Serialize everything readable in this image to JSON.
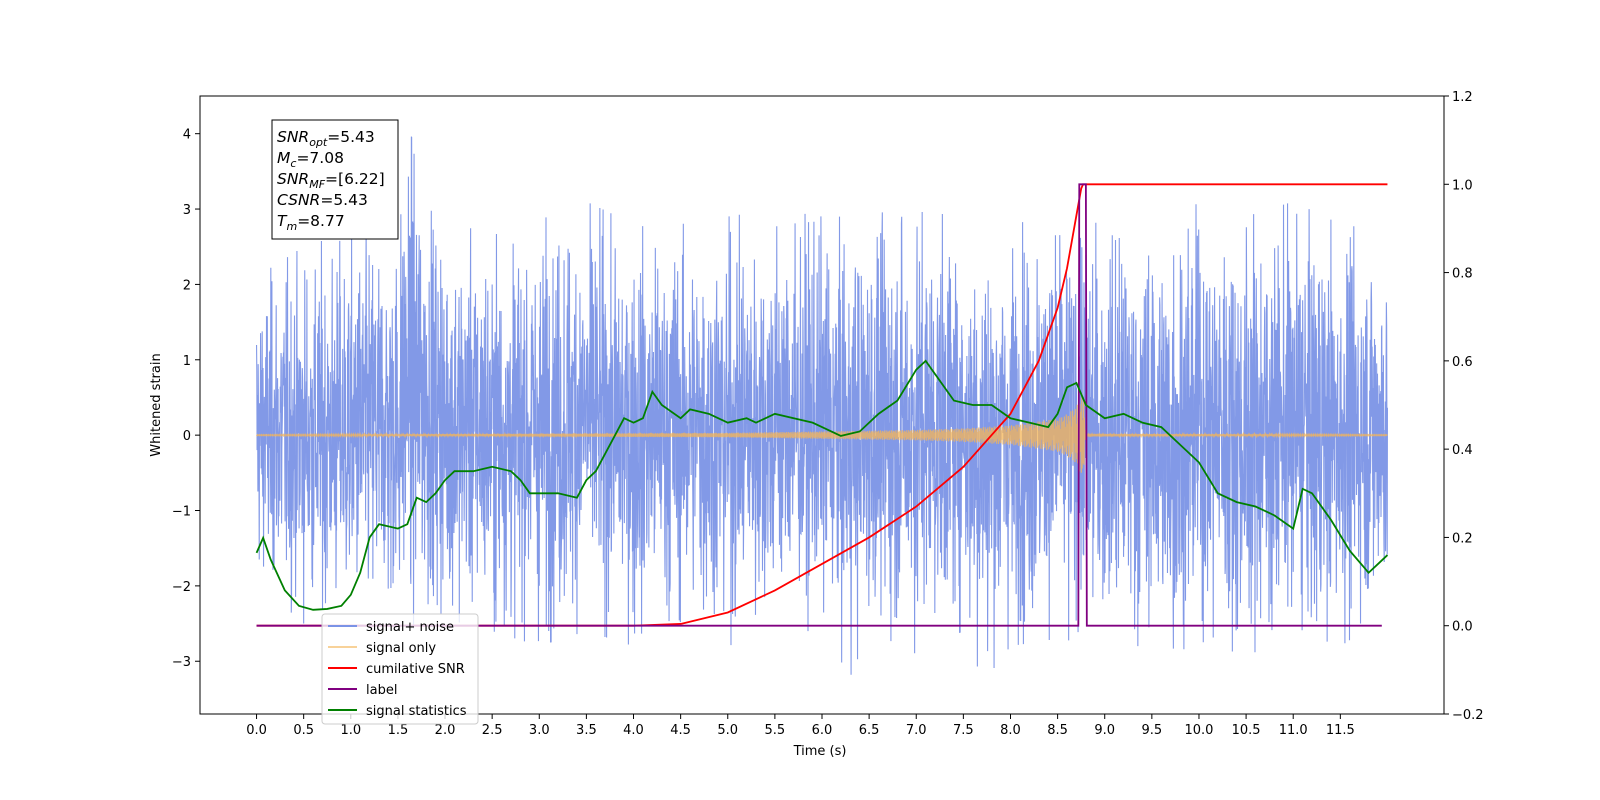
{
  "chart_data": {
    "type": "line",
    "xlabel": "Time (s)",
    "ylabel": "Whitened strain",
    "xlim": [
      -0.6,
      12.6
    ],
    "ylim_left": [
      -3.7,
      4.5
    ],
    "ylim_right": [
      -0.2,
      1.2
    ],
    "xticks": [
      "0.0",
      "0.5",
      "1.0",
      "1.5",
      "2.0",
      "2.5",
      "3.0",
      "3.5",
      "4.0",
      "4.5",
      "5.0",
      "5.5",
      "6.0",
      "6.5",
      "7.0",
      "7.5",
      "8.0",
      "8.5",
      "9.0",
      "9.5",
      "10.0",
      "10.5",
      "11.0",
      "11.5"
    ],
    "yticks_left": [
      "−3",
      "−2",
      "−1",
      "0",
      "1",
      "2",
      "3",
      "4"
    ],
    "yticks_right": [
      "−0.2",
      "0.0",
      "0.2",
      "0.4",
      "0.6",
      "0.8",
      "1.0",
      "1.2"
    ],
    "grid": false,
    "legend_position": "lower-left",
    "annotation": {
      "lines": [
        {
          "base": "SNR",
          "sub": "opt",
          "value": "=5.43"
        },
        {
          "base": "M",
          "sub": "c",
          "value": "=7.08"
        },
        {
          "base": "SNR",
          "sub": "MF",
          "value": "=[6.22]"
        },
        {
          "base": "CSNR",
          "sub": "",
          "value": "=5.43"
        },
        {
          "base": "T",
          "sub": "m",
          "value": "=8.77"
        }
      ]
    },
    "series": [
      {
        "name": "signal+ noise",
        "axis": "left",
        "color": "#7b93e6",
        "description": "dense noisy strain between 0.0 and 12.0 s",
        "x_range": [
          0.0,
          12.0
        ],
        "envelope_upper": [
          [
            0.0,
            2.1
          ],
          [
            0.5,
            2.5
          ],
          [
            1.0,
            2.7
          ],
          [
            1.5,
            2.9
          ],
          [
            1.6,
            4.1
          ],
          [
            2.0,
            2.8
          ],
          [
            2.5,
            2.7
          ],
          [
            3.0,
            2.9
          ],
          [
            3.5,
            3.1
          ],
          [
            4.0,
            2.8
          ],
          [
            4.5,
            2.8
          ],
          [
            5.0,
            2.9
          ],
          [
            5.5,
            3.0
          ],
          [
            6.0,
            2.9
          ],
          [
            6.5,
            2.9
          ],
          [
            7.0,
            3.1
          ],
          [
            7.5,
            2.8
          ],
          [
            8.0,
            2.8
          ],
          [
            8.5,
            2.9
          ],
          [
            9.0,
            2.8
          ],
          [
            9.5,
            2.8
          ],
          [
            10.0,
            3.1
          ],
          [
            10.5,
            2.9
          ],
          [
            11.0,
            3.1
          ],
          [
            11.5,
            2.8
          ],
          [
            12.0,
            2.7
          ]
        ],
        "envelope_lower": [
          [
            0.0,
            -2.0
          ],
          [
            0.5,
            -2.5
          ],
          [
            1.0,
            -2.6
          ],
          [
            1.5,
            -2.6
          ],
          [
            2.0,
            -2.5
          ],
          [
            2.5,
            -2.6
          ],
          [
            3.0,
            -2.8
          ],
          [
            3.5,
            -2.6
          ],
          [
            4.0,
            -2.8
          ],
          [
            4.5,
            -2.6
          ],
          [
            5.0,
            -2.8
          ],
          [
            5.5,
            -2.6
          ],
          [
            6.0,
            -2.6
          ],
          [
            6.3,
            -3.2
          ],
          [
            6.5,
            -2.7
          ],
          [
            7.0,
            -2.9
          ],
          [
            7.5,
            -2.6
          ],
          [
            7.7,
            -3.3
          ],
          [
            8.0,
            -2.8
          ],
          [
            8.5,
            -2.7
          ],
          [
            9.0,
            -2.8
          ],
          [
            9.5,
            -2.8
          ],
          [
            9.7,
            -3.1
          ],
          [
            10.0,
            -2.8
          ],
          [
            10.5,
            -2.9
          ],
          [
            11.0,
            -2.8
          ],
          [
            11.5,
            -2.8
          ],
          [
            12.0,
            -2.4
          ]
        ]
      },
      {
        "name": "signal only",
        "axis": "left",
        "color": "#f5b557",
        "x_range": [
          0.0,
          12.0
        ],
        "envelope": [
          [
            0.0,
            0.005
          ],
          [
            5.0,
            0.03
          ],
          [
            6.0,
            0.05
          ],
          [
            7.0,
            0.07
          ],
          [
            7.5,
            0.09
          ],
          [
            8.0,
            0.13
          ],
          [
            8.5,
            0.22
          ],
          [
            8.6,
            0.28
          ],
          [
            8.7,
            0.38
          ],
          [
            8.77,
            0.6
          ],
          [
            8.8,
            0.02
          ],
          [
            12.0,
            0.005
          ]
        ]
      },
      {
        "name": "cumilative SNR",
        "axis": "right",
        "color": "#ff0000",
        "points": [
          [
            0.0,
            0.0
          ],
          [
            3.5,
            0.0
          ],
          [
            4.0,
            0.0
          ],
          [
            4.5,
            0.004
          ],
          [
            5.0,
            0.03
          ],
          [
            5.5,
            0.08
          ],
          [
            6.0,
            0.14
          ],
          [
            6.5,
            0.2
          ],
          [
            7.0,
            0.27
          ],
          [
            7.5,
            0.36
          ],
          [
            8.0,
            0.48
          ],
          [
            8.3,
            0.6
          ],
          [
            8.5,
            0.72
          ],
          [
            8.6,
            0.81
          ],
          [
            8.7,
            0.93
          ],
          [
            8.75,
            0.99
          ],
          [
            8.77,
            1.0
          ],
          [
            12.0,
            1.0
          ]
        ]
      },
      {
        "name": "label",
        "axis": "right",
        "color": "#800080",
        "points": [
          [
            0.0,
            0.0
          ],
          [
            8.72,
            0.0
          ],
          [
            8.73,
            1.0
          ],
          [
            8.8,
            1.0
          ],
          [
            8.81,
            0.0
          ],
          [
            11.94,
            0.0
          ]
        ]
      },
      {
        "name": "signal statistics",
        "axis": "right",
        "color": "#008000",
        "points": [
          [
            0.0,
            0.165
          ],
          [
            0.07,
            0.199
          ],
          [
            0.15,
            0.15
          ],
          [
            0.3,
            0.08
          ],
          [
            0.45,
            0.045
          ],
          [
            0.6,
            0.036
          ],
          [
            0.75,
            0.038
          ],
          [
            0.9,
            0.045
          ],
          [
            1.0,
            0.07
          ],
          [
            1.1,
            0.12
          ],
          [
            1.2,
            0.2
          ],
          [
            1.3,
            0.23
          ],
          [
            1.4,
            0.225
          ],
          [
            1.5,
            0.22
          ],
          [
            1.6,
            0.23
          ],
          [
            1.7,
            0.29
          ],
          [
            1.8,
            0.28
          ],
          [
            1.9,
            0.3
          ],
          [
            2.0,
            0.33
          ],
          [
            2.1,
            0.35
          ],
          [
            2.3,
            0.35
          ],
          [
            2.5,
            0.36
          ],
          [
            2.7,
            0.35
          ],
          [
            2.8,
            0.33
          ],
          [
            2.9,
            0.3
          ],
          [
            3.0,
            0.3
          ],
          [
            3.2,
            0.3
          ],
          [
            3.4,
            0.29
          ],
          [
            3.5,
            0.33
          ],
          [
            3.6,
            0.35
          ],
          [
            3.7,
            0.39
          ],
          [
            3.8,
            0.43
          ],
          [
            3.9,
            0.47
          ],
          [
            4.0,
            0.46
          ],
          [
            4.1,
            0.47
          ],
          [
            4.2,
            0.53
          ],
          [
            4.3,
            0.5
          ],
          [
            4.5,
            0.47
          ],
          [
            4.6,
            0.49
          ],
          [
            4.8,
            0.48
          ],
          [
            5.0,
            0.46
          ],
          [
            5.2,
            0.47
          ],
          [
            5.3,
            0.46
          ],
          [
            5.5,
            0.48
          ],
          [
            5.7,
            0.47
          ],
          [
            5.9,
            0.46
          ],
          [
            6.0,
            0.45
          ],
          [
            6.2,
            0.43
          ],
          [
            6.4,
            0.44
          ],
          [
            6.6,
            0.48
          ],
          [
            6.8,
            0.51
          ],
          [
            7.0,
            0.58
          ],
          [
            7.1,
            0.6
          ],
          [
            7.2,
            0.57
          ],
          [
            7.4,
            0.51
          ],
          [
            7.6,
            0.5
          ],
          [
            7.8,
            0.5
          ],
          [
            8.0,
            0.47
          ],
          [
            8.2,
            0.46
          ],
          [
            8.4,
            0.45
          ],
          [
            8.5,
            0.48
          ],
          [
            8.6,
            0.54
          ],
          [
            8.7,
            0.55
          ],
          [
            8.8,
            0.5
          ],
          [
            9.0,
            0.47
          ],
          [
            9.2,
            0.48
          ],
          [
            9.4,
            0.46
          ],
          [
            9.6,
            0.45
          ],
          [
            9.8,
            0.41
          ],
          [
            10.0,
            0.37
          ],
          [
            10.2,
            0.3
          ],
          [
            10.4,
            0.28
          ],
          [
            10.6,
            0.27
          ],
          [
            10.8,
            0.25
          ],
          [
            11.0,
            0.22
          ],
          [
            11.1,
            0.31
          ],
          [
            11.2,
            0.3
          ],
          [
            11.4,
            0.24
          ],
          [
            11.6,
            0.17
          ],
          [
            11.8,
            0.12
          ],
          [
            11.9,
            0.14
          ],
          [
            12.0,
            0.16
          ]
        ]
      }
    ]
  }
}
